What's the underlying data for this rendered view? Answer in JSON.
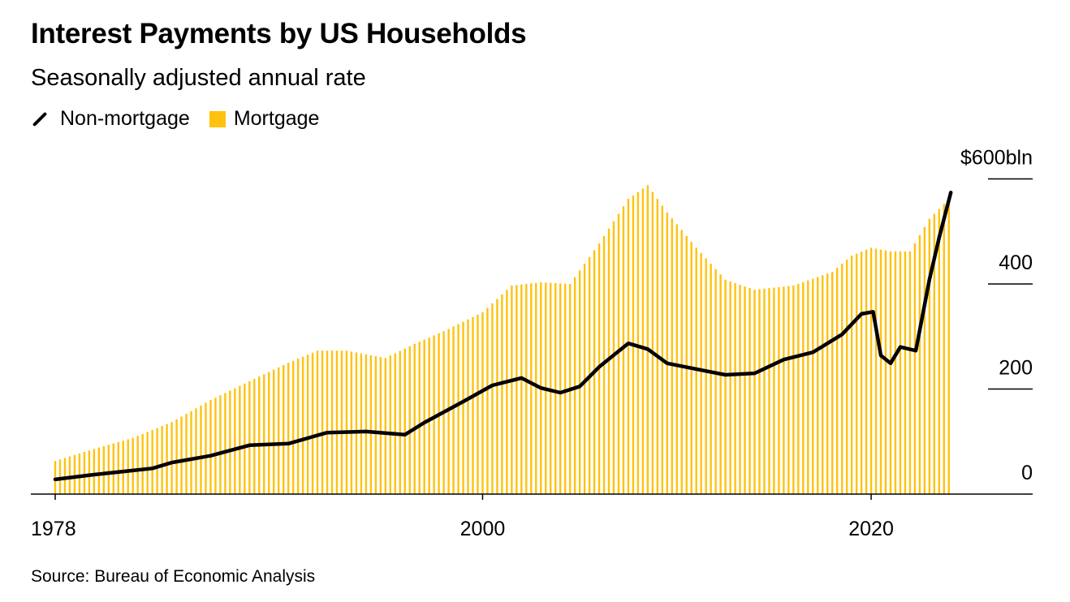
{
  "colors": {
    "mortgage": "#FFC20E",
    "non_mortgage": "#000000"
  },
  "chart_data": {
    "type": "bar+line",
    "title": "Interest Payments by US Households",
    "subtitle": "Seasonally adjusted annual rate",
    "source": "Source: Bureau of Economic Analysis",
    "legend": {
      "placement": "top-left",
      "entries": [
        "Non-mortgage",
        "Mortgage"
      ]
    },
    "xlabel": "",
    "ylabel": "",
    "xlim": [
      1978,
      2024.1
    ],
    "ylim": [
      0,
      600
    ],
    "x_ticks": [
      {
        "value": 1978,
        "label": "1978"
      },
      {
        "value": 2000,
        "label": "2000"
      },
      {
        "value": 2020,
        "label": "2020"
      }
    ],
    "y_ticks": [
      {
        "value": 0,
        "label": "0"
      },
      {
        "value": 200,
        "label": "200"
      },
      {
        "value": 400,
        "label": "400"
      },
      {
        "value": 600,
        "label": "$600bln"
      }
    ],
    "series": [
      {
        "name": "Mortgage",
        "kind": "bar",
        "frequency": "quarterly",
        "x": [
          1978,
          1980,
          1982,
          1984,
          1986,
          1988,
          1990,
          1991.5,
          1993,
          1995,
          1996.5,
          1998,
          2000,
          2001.5,
          2003,
          2004.5,
          2006,
          2007.5,
          2008.5,
          2009.5,
          2011,
          2012.5,
          2014,
          2016,
          2018,
          2019,
          2020,
          2021,
          2022,
          2023,
          2024
        ],
        "values": [
          63,
          86,
          107,
          137,
          179,
          215,
          250,
          273,
          273,
          259,
          286,
          310,
          346,
          397,
          403,
          400,
          477,
          562,
          588,
          536,
          469,
          408,
          389,
          397,
          423,
          454,
          469,
          462,
          462,
          524,
          562
        ]
      },
      {
        "name": "Non-mortgage",
        "kind": "line",
        "x": [
          1978,
          1980,
          1982,
          1983,
          1984,
          1986,
          1988,
          1990,
          1992,
          1994,
          1996,
          1997,
          1999,
          2000.5,
          2002,
          2003,
          2004,
          2005,
          2006,
          2007.5,
          2008.5,
          2009.5,
          2011,
          2012.5,
          2014,
          2015.5,
          2017,
          2018.5,
          2019.5,
          2020.1,
          2020.5,
          2021,
          2021.5,
          2022.3,
          2023,
          2023.5,
          2024.1
        ],
        "values": [
          28,
          37,
          45,
          49,
          60,
          73,
          93,
          96,
          117,
          119,
          113,
          136,
          176,
          207,
          221,
          202,
          193,
          205,
          242,
          287,
          276,
          249,
          238,
          227,
          230,
          256,
          270,
          304,
          343,
          347,
          264,
          249,
          280,
          273,
          408,
          488,
          574
        ]
      }
    ]
  }
}
